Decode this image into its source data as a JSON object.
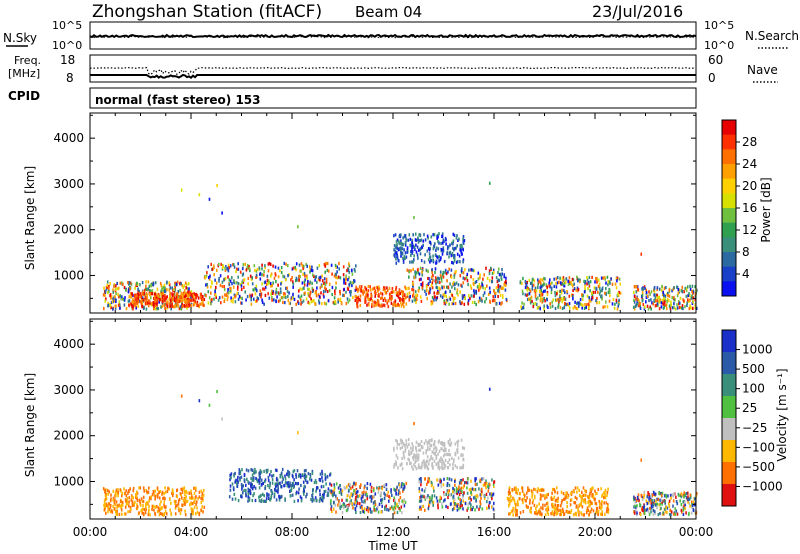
{
  "header": {
    "station": "Zhongshan Station (fitACF)",
    "beam": "Beam 04",
    "date": "23/Jul/2016"
  },
  "nsky_panel": {
    "left_label": "N.Sky",
    "left_ticks": [
      "10^5",
      "10^0"
    ],
    "right_label": "N.Search",
    "right_ticks": [
      "10^5",
      "10^0"
    ]
  },
  "freq_panel": {
    "label_line1": "Freq.",
    "label_line2": "[MHz]",
    "left_ticks": [
      "18",
      "8"
    ],
    "right_label": "Nave",
    "right_ticks": [
      "60",
      "0"
    ]
  },
  "cpid": {
    "label": "CPID",
    "value": "normal (fast stereo) 153"
  },
  "x_axis": {
    "title": "Time UT",
    "ticks": [
      "00:00",
      "04:00",
      "08:00",
      "12:00",
      "16:00",
      "20:00",
      "00:00"
    ]
  },
  "power_panel": {
    "ylabel": "Slant Range [km]",
    "yticks": [
      "4000",
      "3000",
      "2000",
      "1000"
    ],
    "colorbar_label": "Power [dB]",
    "colorbar_ticks": [
      "28",
      "24",
      "20",
      "16",
      "12",
      "8",
      "4"
    ],
    "colorbar_colors": [
      "#e60000",
      "#ff3000",
      "#ff7000",
      "#ffa000",
      "#ffd000",
      "#d8e000",
      "#70c040",
      "#30a050",
      "#3a8f7a",
      "#2a6aa0",
      "#1840c8",
      "#0a10f0"
    ]
  },
  "velocity_panel": {
    "ylabel": "Slant Range [km]",
    "yticks": [
      "4000",
      "3000",
      "2000",
      "1000"
    ],
    "colorbar_label": "Velocity  [m s⁻¹]",
    "colorbar_ticks": [
      "1000",
      "500",
      "100",
      "25",
      "−25",
      "−100",
      "−500",
      "−1000"
    ],
    "colorbar_colors": [
      "#1a30c8",
      "#2a5aa8",
      "#3a8f7a",
      "#50c040",
      "#c0c0c0",
      "#ffb800",
      "#ff7000",
      "#e01010"
    ]
  },
  "chart_data": {
    "type": "heatmap",
    "x_range_hours": [
      0,
      24
    ],
    "y_range_km": [
      180,
      4550
    ],
    "power_patches": [
      {
        "t": [
          0.5,
          4.0
        ],
        "r": [
          300,
          900
        ],
        "level": "mixed"
      },
      {
        "t": [
          1.5,
          4.5
        ],
        "r": [
          350,
          650
        ],
        "level": "high"
      },
      {
        "t": [
          4.5,
          10.5
        ],
        "r": [
          400,
          1300
        ],
        "level": "mixed"
      },
      {
        "t": [
          10.5,
          12.5
        ],
        "r": [
          350,
          800
        ],
        "level": "high"
      },
      {
        "t": [
          12.0,
          14.8
        ],
        "r": [
          1300,
          1950
        ],
        "level": "low"
      },
      {
        "t": [
          12.5,
          16.5
        ],
        "r": [
          400,
          1200
        ],
        "level": "mixed"
      },
      {
        "t": [
          17.0,
          21.0
        ],
        "r": [
          300,
          1000
        ],
        "level": "mixed"
      },
      {
        "t": [
          21.5,
          24.0
        ],
        "r": [
          300,
          800
        ],
        "level": "mixed"
      }
    ],
    "velocity_patches": [
      {
        "t": [
          0.5,
          4.5
        ],
        "r": [
          300,
          900
        ],
        "v": "negative"
      },
      {
        "t": [
          5.5,
          9.5
        ],
        "r": [
          600,
          1300
        ],
        "v": "positive"
      },
      {
        "t": [
          9.5,
          12.5
        ],
        "r": [
          350,
          1000
        ],
        "v": "mixed"
      },
      {
        "t": [
          12.0,
          14.8
        ],
        "r": [
          1300,
          1950
        ],
        "v": "near-zero"
      },
      {
        "t": [
          13.0,
          16.0
        ],
        "r": [
          400,
          1100
        ],
        "v": "mixed"
      },
      {
        "t": [
          16.5,
          20.5
        ],
        "r": [
          300,
          900
        ],
        "v": "negative"
      },
      {
        "t": [
          21.5,
          24.0
        ],
        "r": [
          300,
          800
        ],
        "v": "mixed"
      }
    ]
  }
}
